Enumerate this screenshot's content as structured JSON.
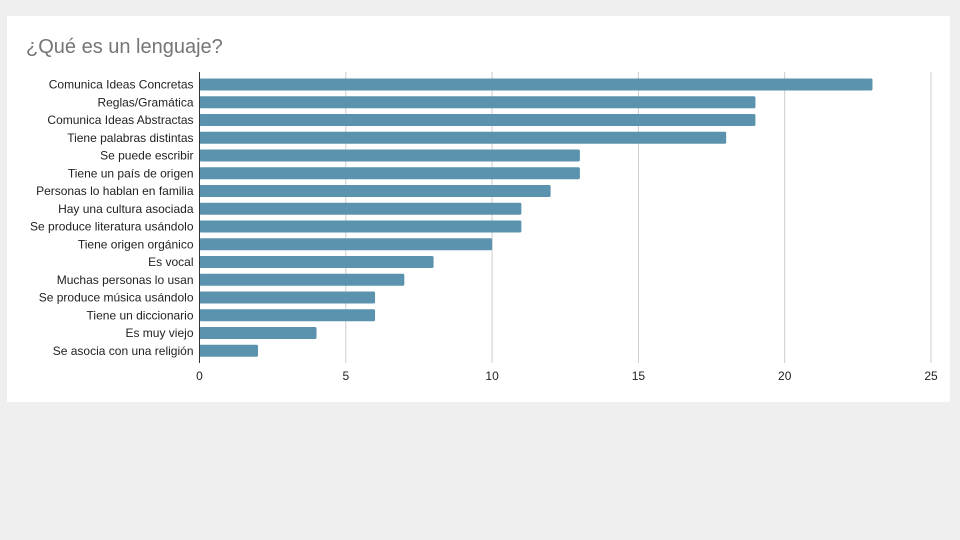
{
  "chart_data": {
    "type": "bar",
    "orientation": "horizontal",
    "title": "¿Qué es un lenguaje?",
    "xlabel": "",
    "ylabel": "",
    "categories": [
      "Comunica Ideas Concretas",
      "Reglas/Gramática",
      "Comunica Ideas Abstractas",
      "Tiene palabras distintas",
      "Se puede escribir",
      "Tiene un país de origen",
      "Personas lo hablan en familia",
      "Hay una cultura asociada",
      "Se produce literatura usándolo",
      "Tiene origen orgánico",
      "Es vocal",
      "Muchas personas lo usan",
      "Se produce música usándolo",
      "Tiene un diccionario",
      "Es muy viejo",
      "Se asocia con una religión"
    ],
    "values": [
      23,
      19,
      19,
      18,
      13,
      13,
      12,
      11,
      11,
      10,
      8,
      7,
      6,
      6,
      4,
      2
    ],
    "xlim": [
      0,
      25
    ],
    "xticks": [
      "0",
      "5",
      "10",
      "15",
      "20",
      "25"
    ],
    "grid": true,
    "legend": "none",
    "bar_color": "#5b93ae",
    "grid_color": "#cccccc",
    "axis_color": "#333333"
  }
}
